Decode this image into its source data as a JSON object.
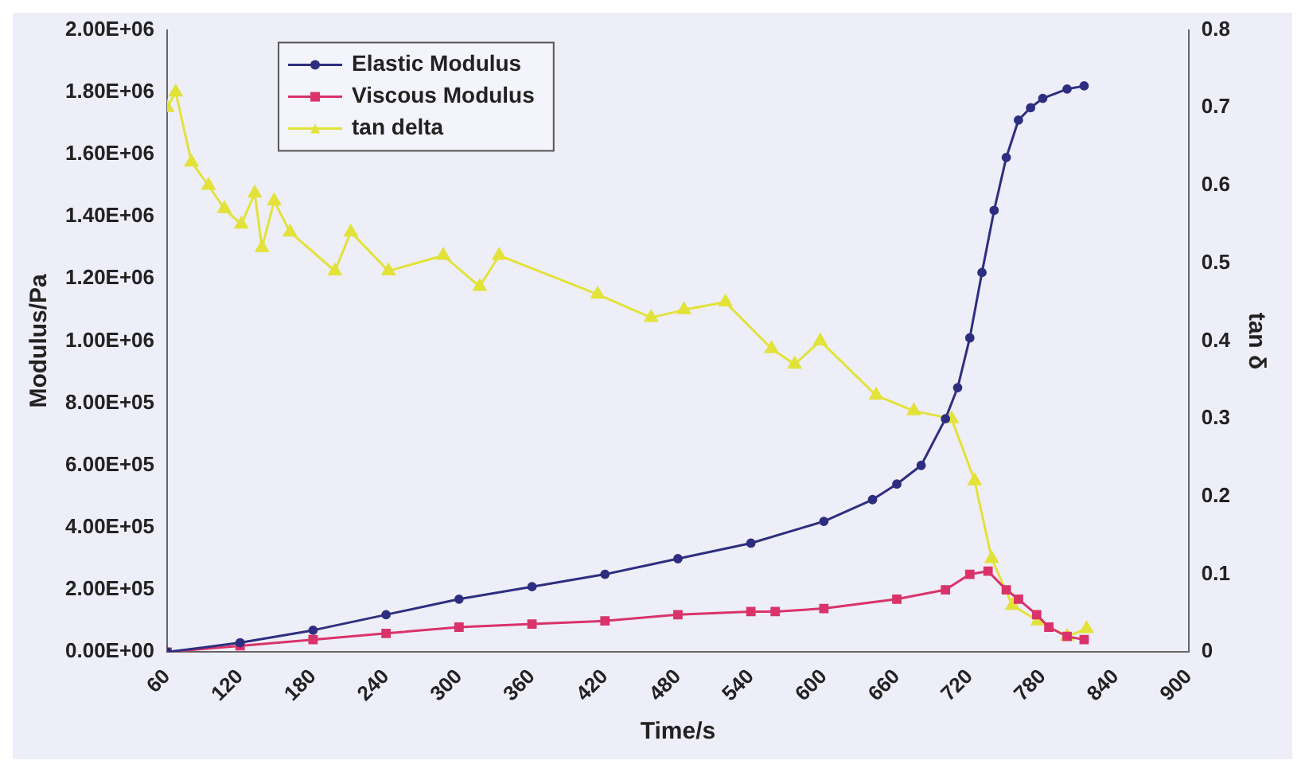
{
  "chart_data": {
    "type": "line",
    "xlabel": "Time/s",
    "ylabel": "Modulus/Pa",
    "y2label": "tan δ",
    "xlim": [
      60,
      900
    ],
    "xticks": [
      60,
      120,
      180,
      240,
      300,
      360,
      420,
      480,
      540,
      600,
      660,
      720,
      780,
      840,
      900
    ],
    "ylim": [
      0,
      2000000
    ],
    "yticks": [
      {
        "value": 0,
        "label": "0.00E+00"
      },
      {
        "value": 200000,
        "label": "2.00E+05"
      },
      {
        "value": 400000,
        "label": "4.00E+05"
      },
      {
        "value": 600000,
        "label": "6.00E+05"
      },
      {
        "value": 800000,
        "label": "8.00E+05"
      },
      {
        "value": 1000000,
        "label": "1.00E+06"
      },
      {
        "value": 1200000,
        "label": "1.20E+06"
      },
      {
        "value": 1400000,
        "label": "1.40E+06"
      },
      {
        "value": 1600000,
        "label": "1.60E+06"
      },
      {
        "value": 1800000,
        "label": "1.80E+06"
      },
      {
        "value": 2000000,
        "label": "2.00E+06"
      }
    ],
    "y2lim": [
      0,
      0.8
    ],
    "y2ticks": [
      0,
      0.1,
      0.2,
      0.3,
      0.4,
      0.5,
      0.6,
      0.7,
      0.8
    ],
    "grid": false,
    "legend": "top left",
    "series": [
      {
        "name": "Elastic Modulus",
        "color": "#2e2e80",
        "marker": "circle",
        "x": [
          60,
          120,
          180,
          240,
          300,
          360,
          420,
          480,
          540,
          600,
          640,
          660,
          680,
          700,
          710,
          720,
          730,
          740,
          750,
          760,
          770,
          780,
          800,
          814
        ],
        "values": [
          0,
          30000,
          70000,
          120000,
          170000,
          210000,
          250000,
          300000,
          350000,
          420000,
          490000,
          540000,
          600000,
          750000,
          850000,
          1010000,
          1220000,
          1420000,
          1590000,
          1710000,
          1750000,
          1780000,
          1810000,
          1820000
        ]
      },
      {
        "name": "Viscous Modulus",
        "color": "#d9336a",
        "marker": "square",
        "x": [
          60,
          120,
          180,
          240,
          300,
          360,
          420,
          480,
          540,
          560,
          600,
          660,
          700,
          720,
          735,
          750,
          760,
          775,
          785,
          800,
          814
        ],
        "values": [
          0,
          20000,
          40000,
          60000,
          80000,
          90000,
          100000,
          120000,
          130000,
          130000,
          140000,
          170000,
          200000,
          250000,
          260000,
          200000,
          170000,
          120000,
          80000,
          50000,
          40000
        ]
      },
      {
        "name": "tan delta",
        "color": "#e2e23a",
        "marker": "triangle",
        "axis": "y2",
        "x": [
          60,
          67,
          80,
          94,
          107,
          121,
          132,
          138,
          148,
          161,
          198,
          211,
          242,
          287,
          317,
          333,
          414,
          458,
          485,
          519,
          557,
          576,
          597,
          643,
          674,
          705,
          724,
          738,
          755,
          776,
          800,
          816
        ],
        "values": [
          0.7,
          0.72,
          0.63,
          0.6,
          0.57,
          0.55,
          0.59,
          0.52,
          0.58,
          0.54,
          0.49,
          0.54,
          0.49,
          0.51,
          0.47,
          0.51,
          0.46,
          0.43,
          0.44,
          0.45,
          0.39,
          0.37,
          0.4,
          0.33,
          0.31,
          0.3,
          0.22,
          0.12,
          0.06,
          0.04,
          0.02,
          0.03
        ]
      }
    ]
  }
}
